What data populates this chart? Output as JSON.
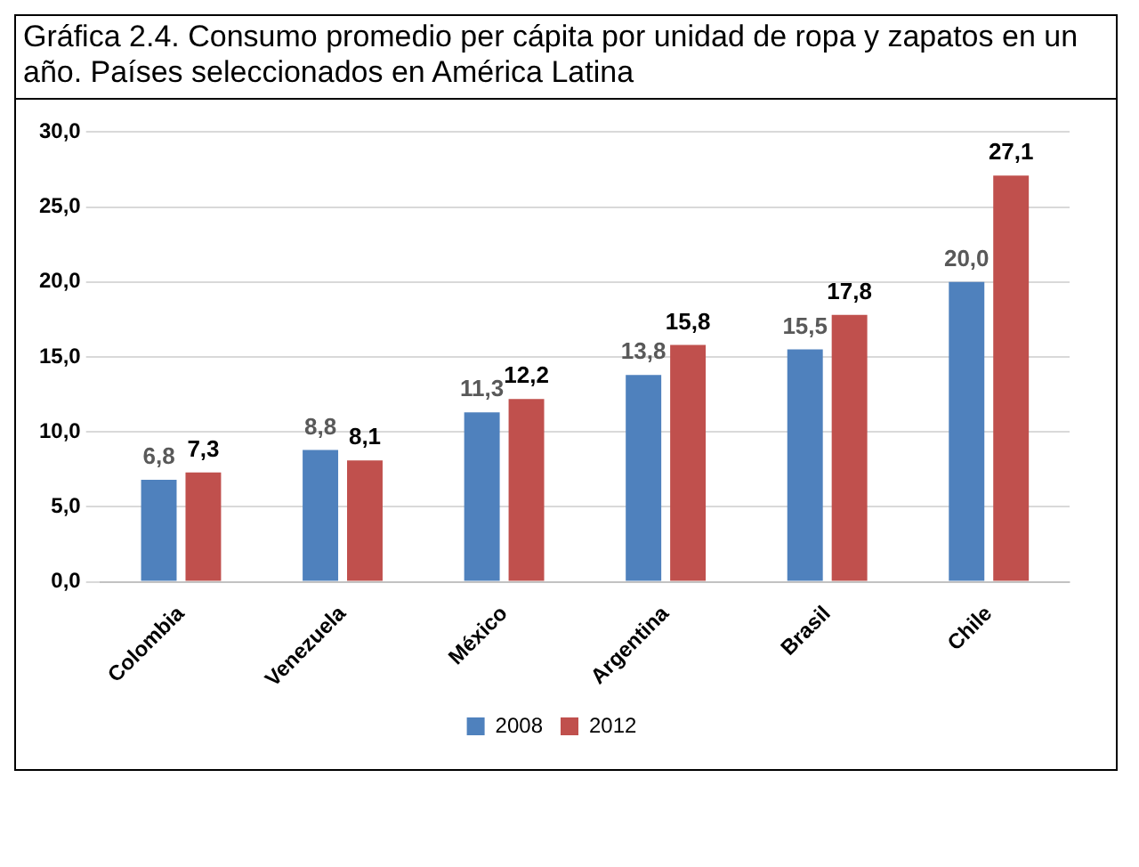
{
  "chart_data": {
    "type": "bar",
    "title": "Gráfica 2.4. Consumo promedio per cápita por unidad de ropa y zapatos en un año. Países seleccionados en América Latina",
    "categories": [
      "Colombia",
      "Venezuela",
      "México",
      "Argentina",
      "Brasil",
      "Chile"
    ],
    "series": [
      {
        "name": "2008",
        "color": "#4f81bd",
        "values": [
          6.8,
          8.8,
          11.3,
          13.8,
          15.5,
          20.0
        ],
        "value_labels": [
          "6,8",
          "8,8",
          "11,3",
          "13,8",
          "15,5",
          "20,0"
        ]
      },
      {
        "name": "2012",
        "color": "#c0504d",
        "values": [
          7.3,
          8.1,
          12.2,
          15.8,
          17.8,
          27.1
        ],
        "value_labels": [
          "7,3",
          "8,1",
          "12,2",
          "15,8",
          "17,8",
          "27,1"
        ]
      }
    ],
    "ylim": [
      0,
      30
    ],
    "yticks": [
      {
        "value": 0,
        "label": "0,0"
      },
      {
        "value": 5,
        "label": "5,0"
      },
      {
        "value": 10,
        "label": "10,0"
      },
      {
        "value": 15,
        "label": "15,0"
      },
      {
        "value": 20,
        "label": "20,0"
      },
      {
        "value": 25,
        "label": "25,0"
      },
      {
        "value": 30,
        "label": "30,0"
      }
    ],
    "grid": "y",
    "legend": "bottom"
  }
}
